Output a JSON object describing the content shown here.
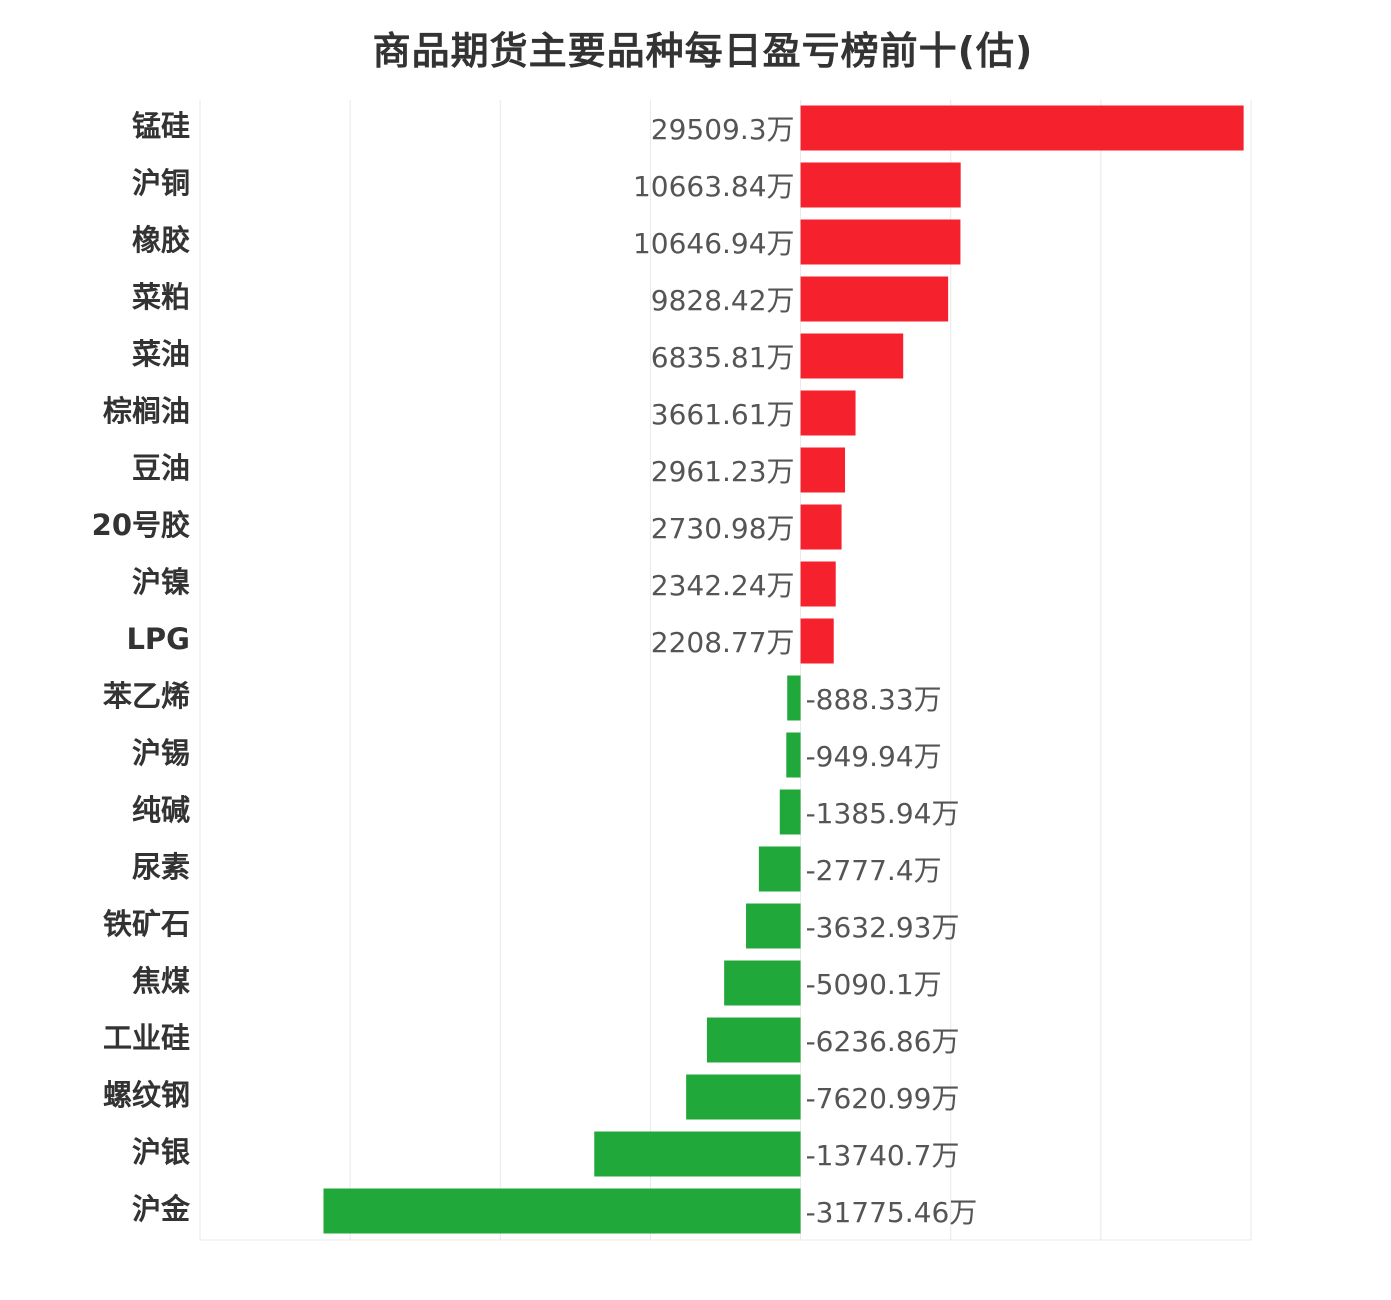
{
  "chart_data": {
    "type": "bar",
    "orientation": "horizontal",
    "title": "商品期货主要品种每日盈亏榜前十(估)",
    "unit_suffix": "万",
    "categories": [
      "锰硅",
      "沪铜",
      "橡胶",
      "菜粕",
      "菜油",
      "棕榈油",
      "豆油",
      "20号胶",
      "沪镍",
      "LPG",
      "苯乙烯",
      "沪锡",
      "纯碱",
      "尿素",
      "铁矿石",
      "焦煤",
      "工业硅",
      "螺纹钢",
      "沪银",
      "沪金"
    ],
    "values": [
      29509.3,
      10663.84,
      10646.94,
      9828.42,
      6835.81,
      3661.61,
      2961.23,
      2730.98,
      2342.24,
      2208.77,
      -888.33,
      -949.94,
      -1385.94,
      -2777.4,
      -3632.93,
      -5090.1,
      -6236.86,
      -7620.99,
      -13740.7,
      -31775.46
    ],
    "value_labels": [
      "29509.3万",
      "10663.84万",
      "10646.94万",
      "9828.42万",
      "6835.81万",
      "3661.61万",
      "2961.23万",
      "2730.98万",
      "2342.24万",
      "2208.77万",
      "-888.33万",
      "-949.94万",
      "-1385.94万",
      "-2777.4万",
      "-3632.93万",
      "-5090.1万",
      "-6236.86万",
      "-7620.99万",
      "-13740.7万",
      "-31775.46万"
    ],
    "xlim": [
      -40000,
      30000
    ],
    "grid_step": 10000,
    "grid": true,
    "axis_tick_labels_shown": false,
    "colors": {
      "positive": "#f5222d",
      "negative": "#21a83a",
      "grid": "#e8e8e8",
      "category_text": "#333333",
      "value_text": "#555555"
    }
  }
}
